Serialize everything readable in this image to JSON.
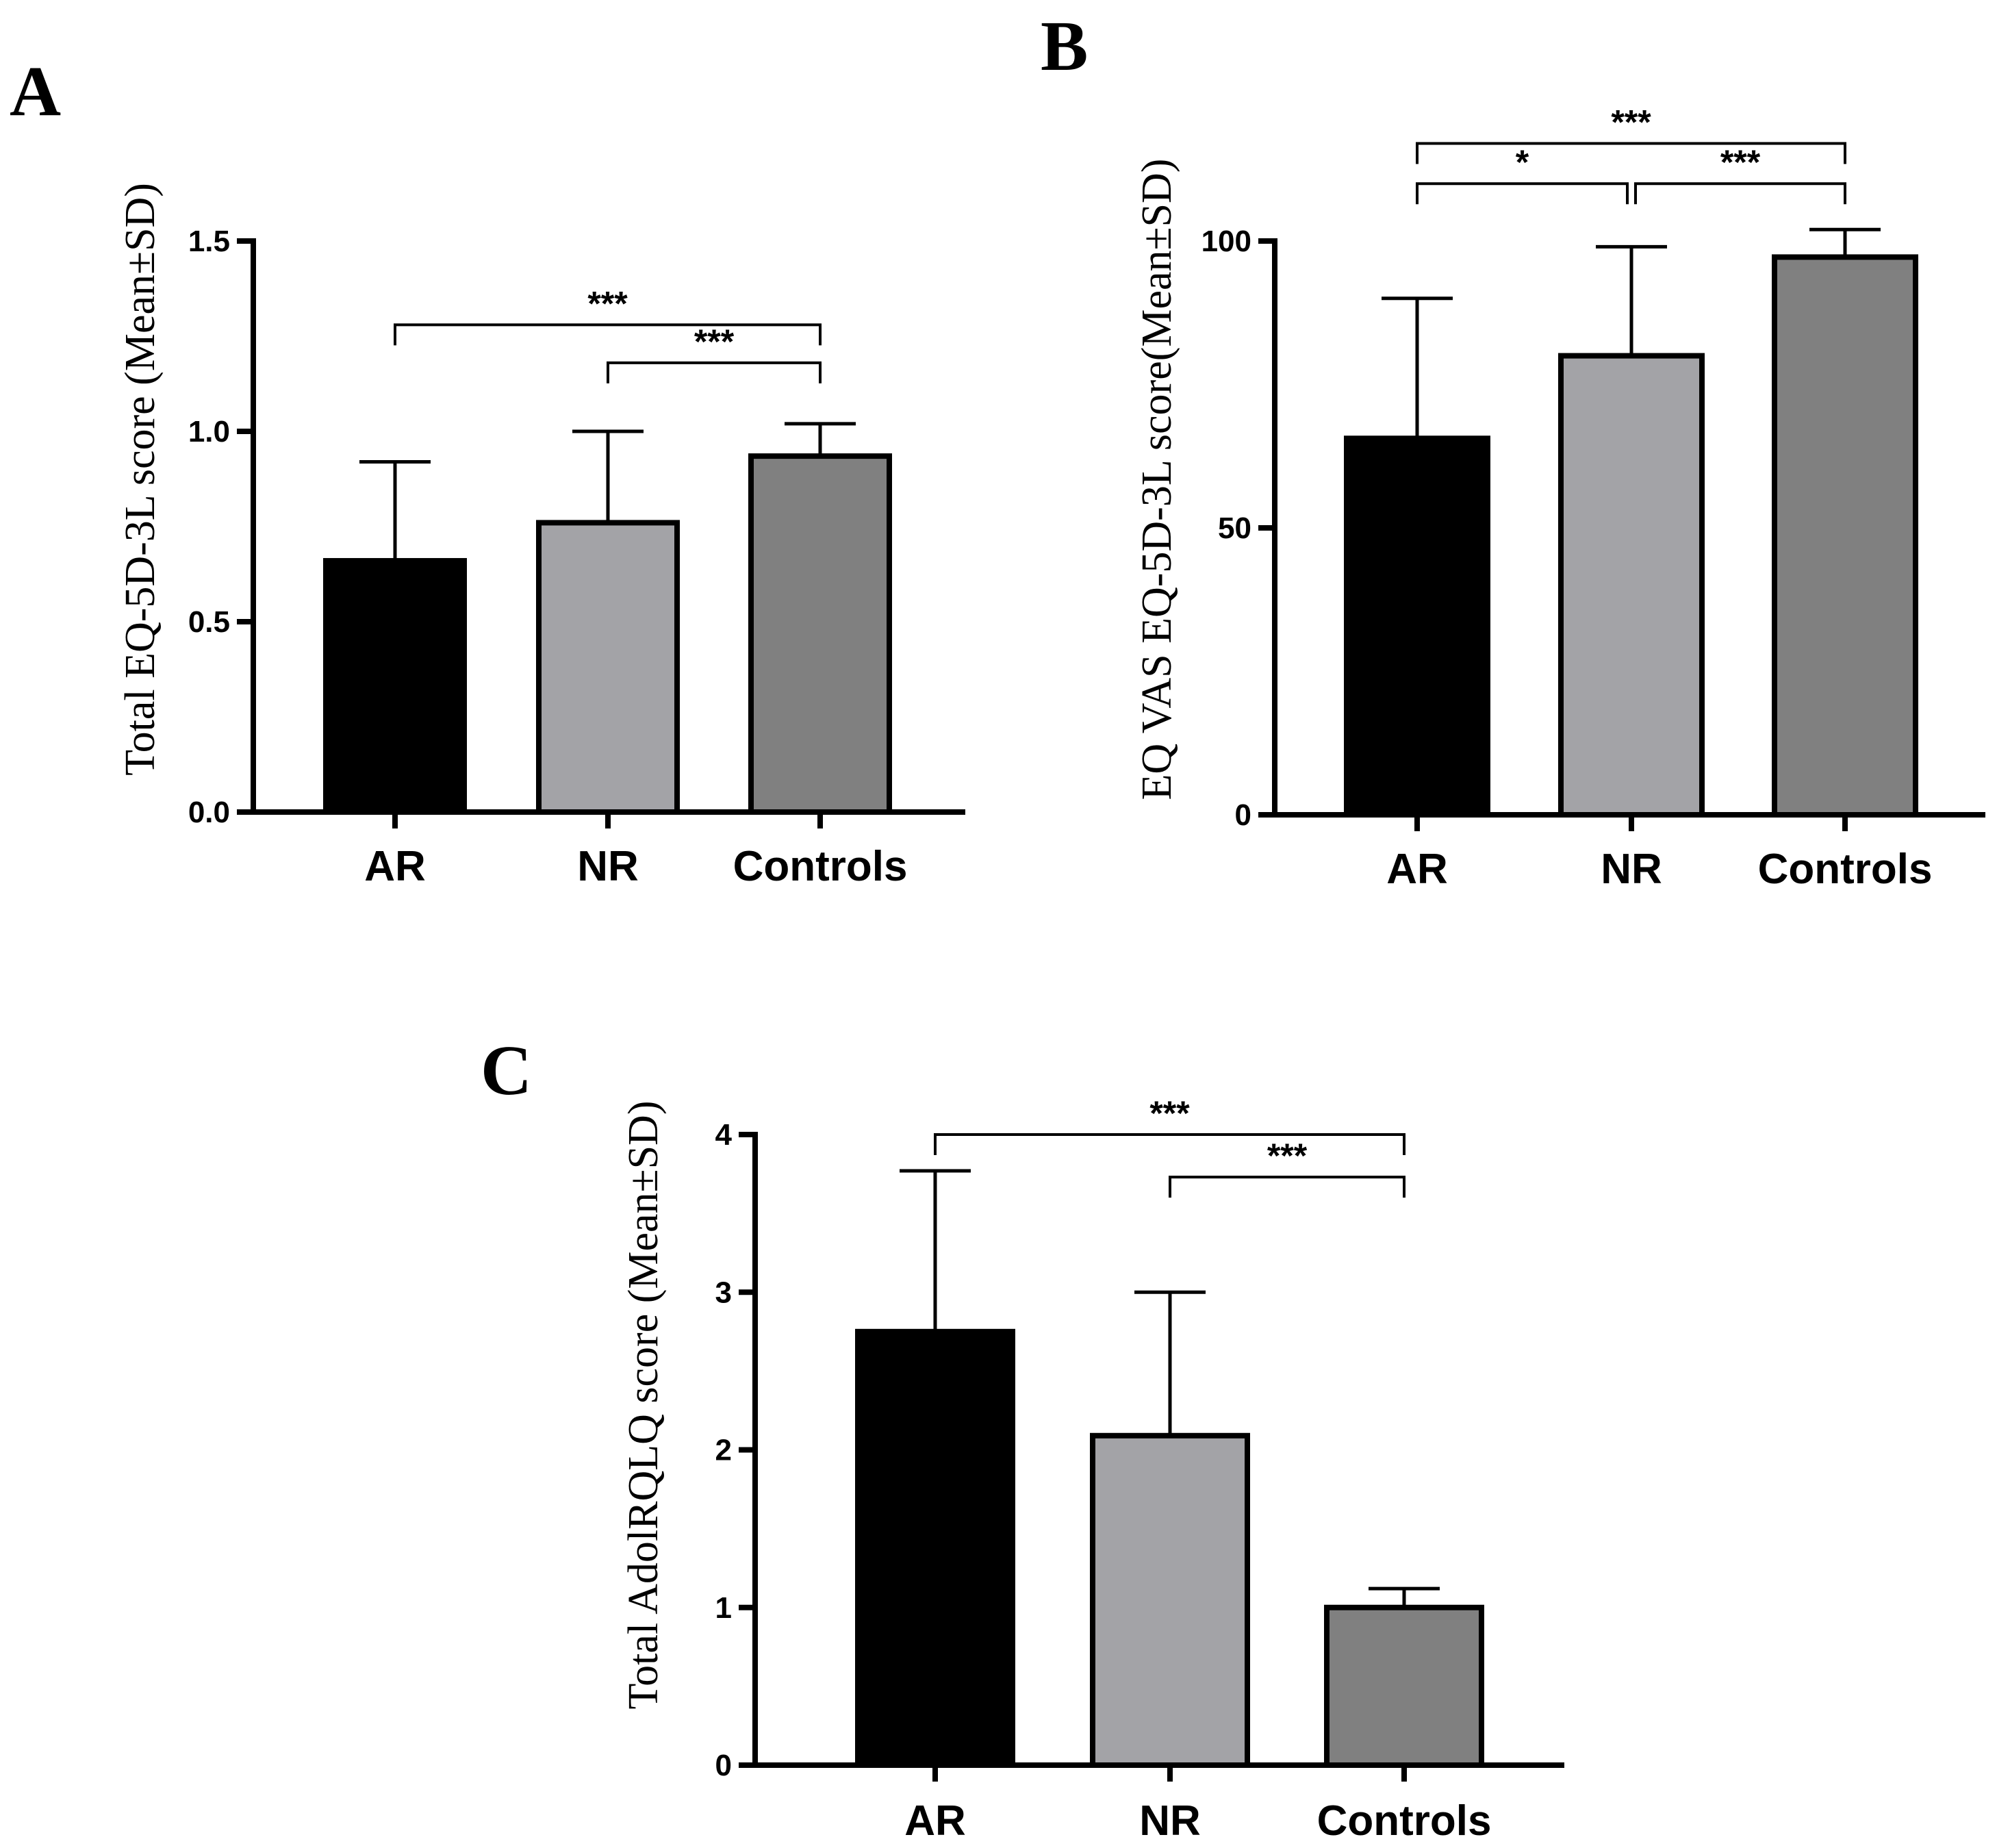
{
  "colors": {
    "AR": "#000000",
    "NR": "#a3a3a7",
    "Controls": "#808080",
    "axis": "#000000"
  },
  "chart_data": [
    {
      "panel": "A",
      "type": "bar",
      "ylabel": "Total EQ-5D-3L score (Mean±SD)",
      "categories": [
        "AR",
        "NR",
        "Controls"
      ],
      "values": [
        0.66,
        0.76,
        0.935
      ],
      "errors": [
        0.26,
        0.24,
        0.085
      ],
      "ylim": [
        0,
        1.5
      ],
      "yticks": [
        0.0,
        0.5,
        1.0,
        1.5
      ],
      "ytick_labels": [
        "0.0",
        "0.5",
        "1.0",
        "1.5"
      ],
      "significance": [
        {
          "from": 0,
          "to": 2,
          "label": "***",
          "level": 1.28
        },
        {
          "from": 1,
          "to": 2,
          "label": "***",
          "level": 1.18
        }
      ]
    },
    {
      "panel": "B",
      "type": "bar",
      "ylabel": "EQ VAS EQ-5D-3L score(Mean±SD)",
      "categories": [
        "AR",
        "NR",
        "Controls"
      ],
      "values": [
        65.6,
        80.0,
        97.2
      ],
      "errors": [
        24.4,
        19.0,
        4.8
      ],
      "ylim": [
        0,
        105
      ],
      "yticks": [
        0,
        50,
        100
      ],
      "ytick_labels": [
        "0",
        "50",
        "100"
      ],
      "significance": [
        {
          "from": 0,
          "to": 2,
          "label": "***",
          "level": 117
        },
        {
          "from": 0,
          "to": 1,
          "label": "*",
          "level": 110
        },
        {
          "from": 1,
          "to": 2,
          "label": "***",
          "level": 110
        }
      ]
    },
    {
      "panel": "C",
      "type": "bar",
      "ylabel": "Total AdolRQLQ score (Mean±SD)",
      "categories": [
        "AR",
        "NR",
        "Controls"
      ],
      "values": [
        2.75,
        2.09,
        1.0
      ],
      "errors": [
        1.02,
        0.91,
        0.12
      ],
      "ylim": [
        0,
        4
      ],
      "yticks": [
        0,
        1,
        2,
        3,
        4
      ],
      "ytick_labels": [
        "0",
        "1",
        "2",
        "3",
        "4"
      ],
      "significance": [
        {
          "from": 0,
          "to": 2,
          "label": "***",
          "level": 4.0
        },
        {
          "from": 1,
          "to": 2,
          "label": "***",
          "level": 3.73
        }
      ]
    }
  ]
}
